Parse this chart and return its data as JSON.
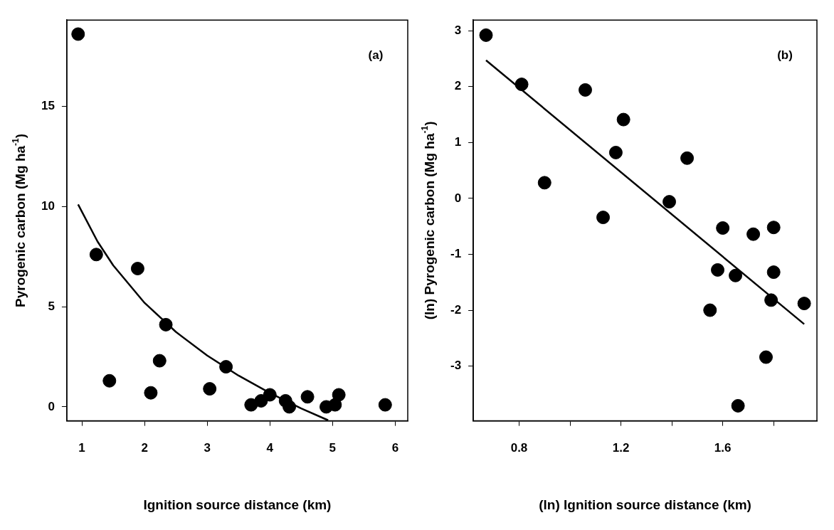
{
  "chart_data": [
    {
      "type": "scatter",
      "xlabel": "Ignition source distance (km)",
      "ylabel": "Pyrogenic carbon (Mg ha$^{-1}$)",
      "annotations": [
        "(a)"
      ],
      "xlim": [
        0.76,
        6.2
      ],
      "ylim": [
        -0.7,
        19.3
      ],
      "xticks": [
        1,
        2,
        3,
        4,
        5,
        6
      ],
      "yticks": [
        0,
        5,
        10,
        15
      ],
      "grid": false,
      "legend": false,
      "marker": "circle",
      "series": [
        {
          "color": "#000000",
          "x": [
            0.94,
            1.23,
            1.89,
            1.44,
            2.24,
            2.1,
            2.34,
            3.04,
            3.3,
            3.7,
            3.86,
            4.0,
            4.25,
            4.31,
            4.6,
            4.9,
            5.04,
            5.1,
            5.84
          ],
          "values": [
            18.6,
            7.6,
            6.9,
            1.3,
            2.3,
            0.7,
            4.1,
            0.9,
            2.0,
            0.1,
            0.3,
            0.6,
            0.3,
            0.0,
            0.5,
            0.0,
            0.1,
            0.6,
            0.1
          ]
        },
        {
          "type": "line",
          "marker": "none",
          "color": "#000000",
          "x": [
            0.94,
            1.25,
            1.5,
            2,
            2.5,
            3,
            3.5,
            4,
            4.5,
            4.93
          ],
          "values": [
            10.1,
            8.25,
            7.06,
            5.19,
            3.74,
            2.56,
            1.56,
            0.69,
            -0.08,
            -0.67
          ]
        }
      ]
    },
    {
      "type": "scatter",
      "xlabel": "(ln) Ignition source distance (km)",
      "ylabel": "(ln) Pyrogenic carbon (Mg ha$^{-1}$)",
      "annotations": [
        "(b)"
      ],
      "xlim": [
        0.62,
        1.97
      ],
      "ylim": [
        -3.98,
        3.19
      ],
      "xticks": [
        0.8,
        {
          "value": 1.0,
          "label": null
        },
        1.2,
        {
          "value": 1.4,
          "label": null
        },
        1.6,
        {
          "value": 1.8,
          "label": null
        }
      ],
      "yticks": [
        -3,
        -2,
        -1,
        0,
        1,
        2,
        3
      ],
      "grid": false,
      "legend": false,
      "marker": "circle",
      "series": [
        {
          "color": "#000000",
          "x": [
            0.67,
            0.81,
            0.9,
            1.06,
            1.13,
            1.18,
            1.21,
            1.39,
            1.46,
            1.55,
            1.58,
            1.6,
            1.65,
            1.66,
            1.72,
            1.77,
            1.79,
            1.8,
            1.8,
            1.92
          ],
          "values": [
            2.92,
            2.04,
            0.28,
            1.94,
            -0.34,
            0.82,
            1.41,
            -0.06,
            0.72,
            -2.0,
            -1.28,
            -0.53,
            -1.38,
            -3.71,
            -0.64,
            -2.84,
            -1.82,
            -1.32,
            -0.52,
            -1.88
          ]
        },
        {
          "type": "line",
          "marker": "none",
          "color": "#000000",
          "x": [
            0.67,
            1.92
          ],
          "values": [
            2.47,
            -2.25
          ]
        }
      ]
    }
  ]
}
